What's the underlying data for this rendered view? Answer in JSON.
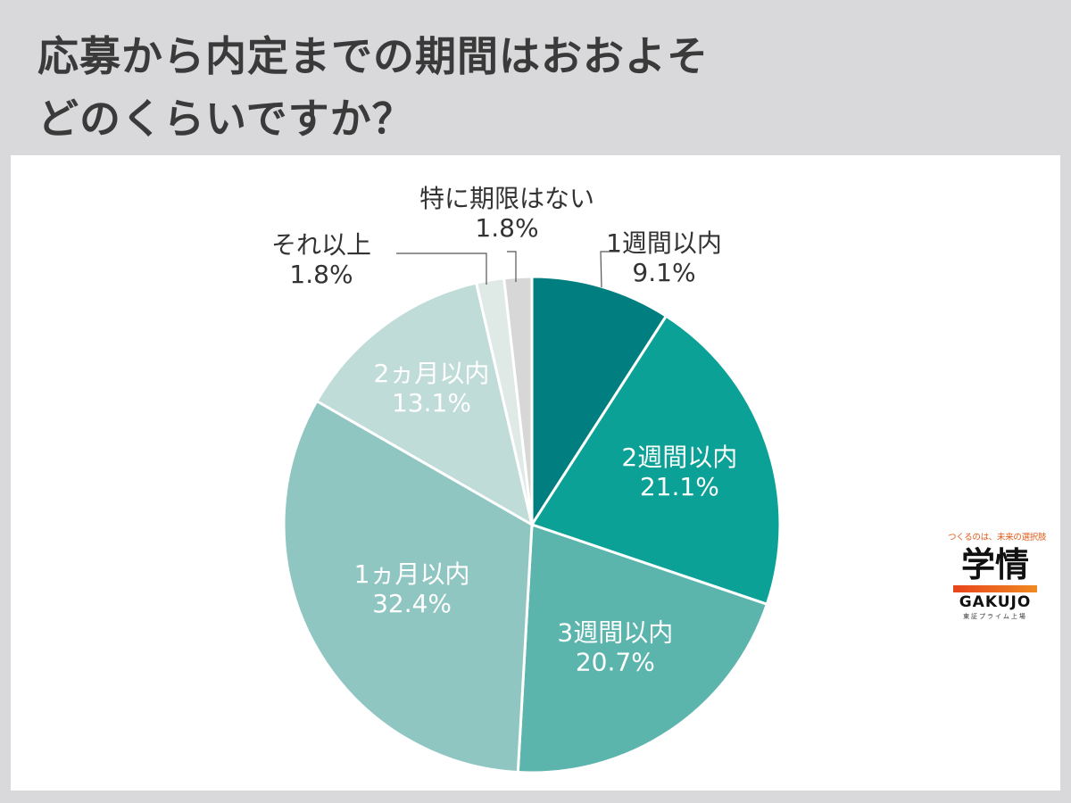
{
  "title": {
    "line1": "応募から内定までの期間はおおよそ",
    "line2": "どのくらいですか？"
  },
  "chart_data": {
    "type": "pie",
    "title": "応募から内定までの期間はおおよそどのくらいですか？",
    "unit": "%",
    "slices": [
      {
        "label": "1週間以内",
        "value": 9.1,
        "display": "9.1%",
        "color": "#017f80"
      },
      {
        "label": "2週間以内",
        "value": 21.1,
        "display": "21.1%",
        "color": "#0ba197"
      },
      {
        "label": "3週間以内",
        "value": 20.7,
        "display": "20.7%",
        "color": "#5bb5ac"
      },
      {
        "label": "1ヵ月以内",
        "value": 32.4,
        "display": "32.4%",
        "color": "#90c6c1"
      },
      {
        "label": "2ヵ月以内",
        "value": 13.1,
        "display": "13.1%",
        "color": "#c0dcd8"
      },
      {
        "label": "それ以上",
        "value": 1.8,
        "display": "1.8%",
        "color": "#dfe9e5"
      },
      {
        "label": "特に期限はない",
        "value": 1.8,
        "display": "1.8%",
        "color": "#d7d7d8"
      }
    ],
    "legend": "none"
  },
  "logo": {
    "tagline": "つくるのは、未来の選択肢",
    "kanji": "学情",
    "english": "GAKUJO",
    "subline": "東証プライム上場"
  }
}
